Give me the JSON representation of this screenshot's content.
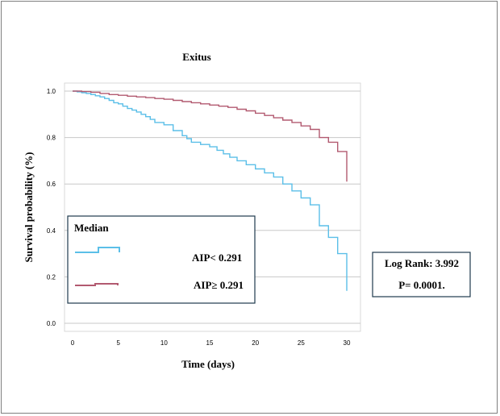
{
  "chart_data": {
    "type": "line",
    "subtype": "kaplan-meier-step",
    "title": "Exitus",
    "xlabel": "Time (days)",
    "ylabel": "Survival probability (%)",
    "xlim": [
      0,
      30
    ],
    "ylim": [
      0,
      1
    ],
    "x_ticks": [
      "0",
      "5",
      "10",
      "15",
      "20",
      "25",
      "30"
    ],
    "y_ticks": [
      "0.0",
      "0.2",
      "0.4",
      "0.6",
      "0.8",
      "1.0"
    ],
    "grid": "horizontal",
    "legend": {
      "title": "Median",
      "position": "bottom-left",
      "entries": [
        "AIP< 0.291",
        "AIP≥ 0.291"
      ]
    },
    "stats": {
      "log_rank": "Log Rank: 3.992",
      "p_value": "P= 0.0001."
    },
    "series": [
      {
        "color": "#5bbfe8",
        "points": [
          [
            0,
            1.0
          ],
          [
            0.5,
            0.997
          ],
          [
            1,
            0.993
          ],
          [
            1.5,
            0.99
          ],
          [
            2,
            0.985
          ],
          [
            2.5,
            0.98
          ],
          [
            3,
            0.975
          ],
          [
            3.5,
            0.968
          ],
          [
            4,
            0.96
          ],
          [
            4.5,
            0.95
          ],
          [
            5,
            0.945
          ],
          [
            5.5,
            0.935
          ],
          [
            6,
            0.925
          ],
          [
            6.5,
            0.918
          ],
          [
            7,
            0.91
          ],
          [
            7.5,
            0.9
          ],
          [
            8,
            0.89
          ],
          [
            8.5,
            0.878
          ],
          [
            9,
            0.865
          ],
          [
            10,
            0.855
          ],
          [
            11,
            0.83
          ],
          [
            12,
            0.808
          ],
          [
            12.5,
            0.795
          ],
          [
            13,
            0.78
          ],
          [
            14,
            0.77
          ],
          [
            15,
            0.76
          ],
          [
            15.8,
            0.745
          ],
          [
            16.5,
            0.73
          ],
          [
            17.2,
            0.715
          ],
          [
            18,
            0.7
          ],
          [
            19,
            0.683
          ],
          [
            20,
            0.665
          ],
          [
            21,
            0.648
          ],
          [
            22,
            0.63
          ],
          [
            23,
            0.6
          ],
          [
            24,
            0.57
          ],
          [
            25,
            0.54
          ],
          [
            26,
            0.51
          ],
          [
            27,
            0.42
          ],
          [
            28,
            0.37
          ],
          [
            29,
            0.3
          ],
          [
            30,
            0.14
          ]
        ]
      },
      {
        "color": "#b25a70",
        "points": [
          [
            0,
            1.0
          ],
          [
            1,
            0.998
          ],
          [
            2,
            0.995
          ],
          [
            3,
            0.99
          ],
          [
            4,
            0.985
          ],
          [
            5,
            0.982
          ],
          [
            6,
            0.978
          ],
          [
            7,
            0.975
          ],
          [
            8,
            0.972
          ],
          [
            9,
            0.968
          ],
          [
            10,
            0.965
          ],
          [
            11,
            0.96
          ],
          [
            12,
            0.955
          ],
          [
            13,
            0.95
          ],
          [
            14,
            0.945
          ],
          [
            15,
            0.94
          ],
          [
            16,
            0.935
          ],
          [
            17,
            0.93
          ],
          [
            18,
            0.922
          ],
          [
            19,
            0.915
          ],
          [
            20,
            0.905
          ],
          [
            21,
            0.895
          ],
          [
            22,
            0.885
          ],
          [
            23,
            0.875
          ],
          [
            24,
            0.865
          ],
          [
            25,
            0.85
          ],
          [
            26,
            0.835
          ],
          [
            27,
            0.8
          ],
          [
            28,
            0.78
          ],
          [
            29,
            0.74
          ],
          [
            30,
            0.61
          ]
        ]
      }
    ]
  }
}
